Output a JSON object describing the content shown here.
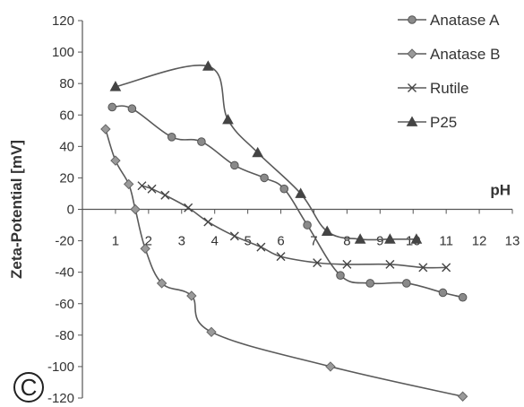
{
  "chart_data": {
    "type": "line",
    "title": "",
    "xlabel": "pH",
    "ylabel": "Zeta-Potential [mV]",
    "panel_label": "C",
    "xlim": [
      0,
      13
    ],
    "ylim": [
      -120,
      120
    ],
    "x_ticks": [
      1,
      2,
      3,
      4,
      5,
      6,
      7,
      8,
      9,
      10,
      11,
      12,
      13
    ],
    "y_ticks": [
      120,
      100,
      80,
      60,
      40,
      20,
      0,
      -20,
      -40,
      -60,
      -80,
      -100,
      -120
    ],
    "grid": false,
    "legend_position": "top-right",
    "series": [
      {
        "name": "Anatase A",
        "marker": "circle",
        "x": [
          0.9,
          1.5,
          2.7,
          3.6,
          4.6,
          5.5,
          6.1,
          6.8,
          7.8,
          8.7,
          9.8,
          10.9,
          11.5
        ],
        "y": [
          65,
          64,
          46,
          43,
          28,
          20,
          13,
          -10,
          -42,
          -47,
          -47,
          -53,
          -56
        ]
      },
      {
        "name": "Anatase B",
        "marker": "diamond",
        "x": [
          0.7,
          1.0,
          1.4,
          1.6,
          1.9,
          2.4,
          3.3,
          3.9,
          7.5,
          11.5
        ],
        "y": [
          51,
          31,
          16,
          0,
          -25,
          -47,
          -55,
          -78,
          -100,
          -119
        ]
      },
      {
        "name": "Rutile",
        "marker": "x",
        "x": [
          1.8,
          2.1,
          2.5,
          3.2,
          3.8,
          4.6,
          5.4,
          6.0,
          7.1,
          8.0,
          9.3,
          10.3,
          11.0
        ],
        "y": [
          15,
          13,
          9,
          1,
          -8,
          -17,
          -24,
          -30,
          -34,
          -35,
          -35,
          -37,
          -37
        ]
      },
      {
        "name": "P25",
        "marker": "triangle",
        "x": [
          1.0,
          3.8,
          4.4,
          5.3,
          6.6,
          7.4,
          8.4,
          9.3,
          10.1
        ],
        "y": [
          78,
          91,
          57,
          36,
          10,
          -14,
          -19,
          -19,
          -19
        ]
      }
    ]
  }
}
